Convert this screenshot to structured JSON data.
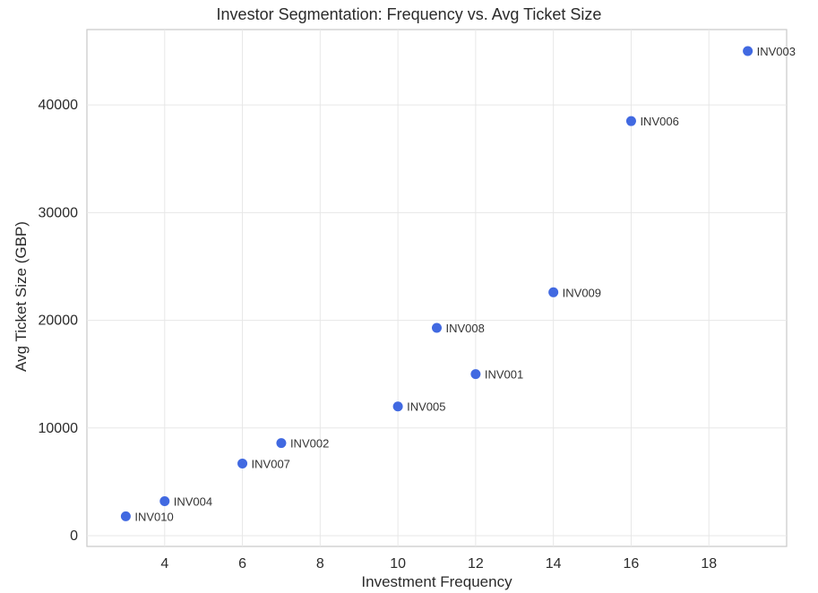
{
  "chart_data": {
    "type": "scatter",
    "title": "Investor Segmentation: Frequency vs. Avg Ticket Size",
    "xlabel": "Investment Frequency",
    "ylabel": "Avg Ticket Size (GBP)",
    "xlim": [
      2,
      20
    ],
    "ylim": [
      -1000,
      47000
    ],
    "xticks": [
      4,
      6,
      8,
      10,
      12,
      14,
      16,
      18
    ],
    "yticks": [
      0,
      10000,
      20000,
      30000,
      40000
    ],
    "grid": true,
    "legend": "none",
    "point_color": "#4169e1",
    "point_label_color": "#333333",
    "tick_label_color": "#2b2b2b",
    "grid_color": "#e7e7e7",
    "border_color": "#c9c9c9",
    "points": [
      {
        "label": "INV010",
        "x": 3,
        "y": 1800
      },
      {
        "label": "INV004",
        "x": 4,
        "y": 3200
      },
      {
        "label": "INV007",
        "x": 6,
        "y": 6700
      },
      {
        "label": "INV002",
        "x": 7,
        "y": 8600
      },
      {
        "label": "INV005",
        "x": 10,
        "y": 12000
      },
      {
        "label": "INV001",
        "x": 12,
        "y": 15000
      },
      {
        "label": "INV008",
        "x": 11,
        "y": 19300
      },
      {
        "label": "INV009",
        "x": 14,
        "y": 22600
      },
      {
        "label": "INV006",
        "x": 16,
        "y": 38500
      },
      {
        "label": "INV003",
        "x": 19,
        "y": 45000
      }
    ]
  }
}
